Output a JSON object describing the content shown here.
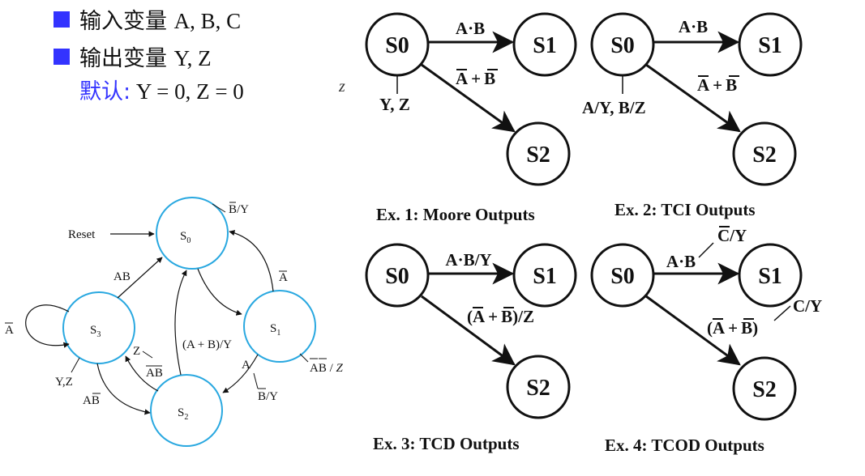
{
  "bullets": [
    {
      "prefix": "输入变量",
      "value": "A, B, C"
    },
    {
      "prefix": "输出变量",
      "value": "Y, Z"
    }
  ],
  "default_note": {
    "label": "默认:",
    "value": "Y = 0, Z = 0"
  },
  "stray_glyph": "z",
  "fsm": {
    "states": [
      "S",
      "S",
      "S",
      "S"
    ],
    "subscripts": [
      "0",
      "1",
      "2",
      "3"
    ],
    "reset": "Reset",
    "labels": {
      "s0_out": "B/Y",
      "s1_out": "AB",
      "s1_out_z": "Z",
      "ab": "AB",
      "a_bar_top": "A",
      "a_bar_loop": "A",
      "ab_plus": "(A + B)/Y",
      "yz": "Y,Z",
      "a_bbar": "AB",
      "z": "Z",
      "abar_b": "AB",
      "a_small": "A",
      "bbar_y": "B/Y"
    }
  },
  "examples": [
    {
      "caption": "Ex. 1: Moore Outputs",
      "nodes": [
        "S0",
        "S1",
        "S2"
      ],
      "top_edge": "A·B",
      "diag_edge_a": "A",
      "diag_edge_plus": "+",
      "diag_edge_b": "B",
      "side_label": "Y, Z"
    },
    {
      "caption": "Ex. 2: TCI Outputs",
      "nodes": [
        "S0",
        "S1",
        "S2"
      ],
      "top_edge": "A·B",
      "diag_edge_a": "A",
      "diag_edge_plus": "+",
      "diag_edge_b": "B",
      "side_label": "A/Y, B/Z"
    },
    {
      "caption": "Ex. 3: TCD Outputs",
      "nodes": [
        "S0",
        "S1",
        "S2"
      ],
      "top_edge": "A·B/Y",
      "diag_edge_open": "(",
      "diag_edge_a": "A",
      "diag_edge_plus": "+",
      "diag_edge_b": "B",
      "diag_edge_close": ")/Z"
    },
    {
      "caption": "Ex. 4: TCOD Outputs",
      "nodes": [
        "S0",
        "S1",
        "S2"
      ],
      "top_edge": "A·B",
      "top_out": "C/Y",
      "diag_edge_open": "(",
      "diag_edge_a": "A",
      "diag_edge_plus": "+",
      "diag_edge_b": "B",
      "diag_edge_close": ")",
      "diag_out": "C/Y"
    }
  ]
}
